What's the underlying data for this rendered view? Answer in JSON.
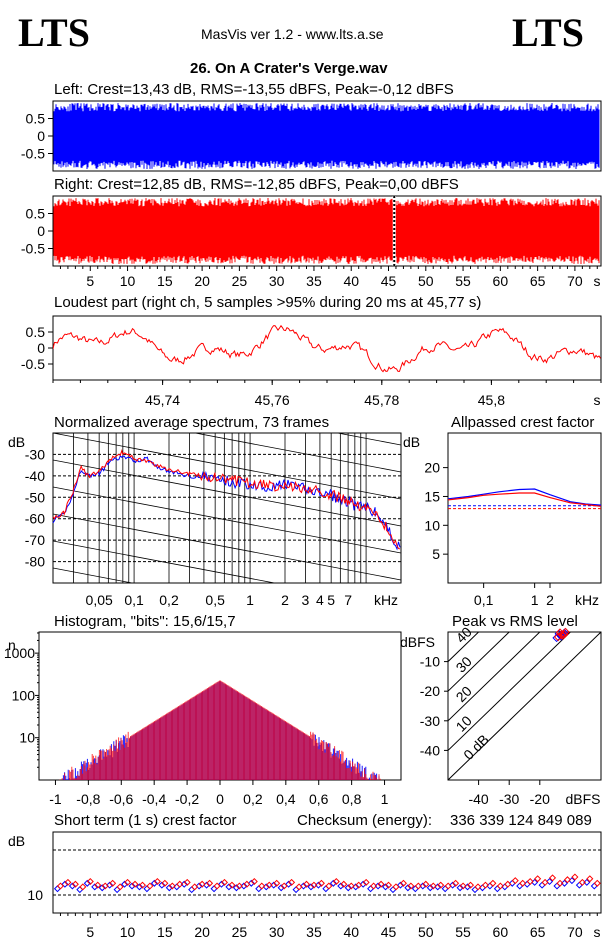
{
  "header": {
    "logo_left": "LTS",
    "logo_right": "LTS",
    "app": "MasVis ver 1.2 - www.lts.a.se",
    "file": "26. On A Crater's Verge.wav"
  },
  "colors": {
    "left": "#0000ff",
    "right": "#ff0000",
    "grid": "#000000"
  },
  "chart_data": [
    {
      "id": "left",
      "type": "area",
      "title": "Left: Crest=13,43 dB, RMS=-13,55 dBFS, Peak=-0,12 dBFS",
      "crest_db": 13.43,
      "rms_dbfs": -13.55,
      "peak_dbfs": -0.12,
      "yticks": [
        "0.5",
        "0",
        "-0.5"
      ],
      "ylim": [
        -1,
        1
      ],
      "xlim": [
        0,
        73.5
      ]
    },
    {
      "id": "right",
      "type": "area",
      "title": "Right: Crest=12,85 dB, RMS=-12,85 dBFS, Peak=0,00 dBFS",
      "crest_db": 12.85,
      "rms_dbfs": -12.85,
      "peak_dbfs": 0.0,
      "yticks": [
        "0.5",
        "0",
        "-0.5"
      ],
      "ylim": [
        -1,
        1
      ],
      "xlim": [
        0,
        73.5
      ],
      "marker_x": 45.77,
      "xticks": [
        "5",
        "10",
        "15",
        "20",
        "25",
        "30",
        "35",
        "40",
        "45",
        "50",
        "55",
        "60",
        "65",
        "70",
        "s"
      ]
    },
    {
      "id": "loudest",
      "type": "line",
      "title": "Loudest part (right ch, 5 samples >95% during 20 ms at 45,77 s)",
      "yticks": [
        "0.5",
        "0",
        "-0.5"
      ],
      "ylim": [
        -1,
        1
      ],
      "xlim": [
        45.72,
        45.82
      ],
      "xticks": [
        "45,74",
        "45,76",
        "45,78",
        "45,8",
        "s"
      ]
    },
    {
      "id": "spectrum",
      "type": "line",
      "title": "Normalized average spectrum, 73 frames",
      "ylabel": "dB",
      "yticks": [
        "-30",
        "-40",
        "-50",
        "-60",
        "-70",
        "-80"
      ],
      "ylim": [
        -90,
        -20
      ],
      "xticks": [
        "0,05",
        "0,1",
        "0,2",
        "0,5",
        "1",
        "2",
        "3",
        "4",
        "5",
        "7",
        "kHz"
      ],
      "x_khz": [
        0.02,
        0.025,
        0.03,
        0.035,
        0.04,
        0.05,
        0.06,
        0.08,
        0.1,
        0.13,
        0.15,
        0.2,
        0.3,
        0.5,
        0.7,
        1,
        1.5,
        2,
        3,
        4,
        5,
        6,
        7,
        8,
        10,
        12,
        15,
        20
      ],
      "series": [
        {
          "name": "Left",
          "values": [
            -61,
            -58,
            -48,
            -37,
            -40,
            -39,
            -34,
            -31,
            -33,
            -32,
            -35,
            -38,
            -40,
            -41,
            -43,
            -44,
            -45,
            -44,
            -46,
            -48,
            -49,
            -51,
            -52,
            -54,
            -55,
            -57,
            -64,
            -75
          ]
        },
        {
          "name": "Right",
          "values": [
            -60,
            -57,
            -47,
            -36,
            -40,
            -38,
            -33,
            -29,
            -32,
            -33,
            -35,
            -37,
            -39,
            -41,
            -42,
            -43,
            -45,
            -44,
            -46,
            -47,
            -49,
            -50,
            -52,
            -53,
            -55,
            -57,
            -64,
            -76
          ]
        }
      ]
    },
    {
      "id": "allpass",
      "type": "line",
      "title": "Allpassed crest factor",
      "ylabel": "dB",
      "yticks": [
        "20",
        "15",
        "10",
        "5"
      ],
      "ylim": [
        0,
        26
      ],
      "xticks": [
        "0,1",
        "1",
        "2",
        "kHz"
      ],
      "x_khz": [
        0.02,
        0.05,
        0.1,
        0.2,
        0.5,
        1,
        2,
        5,
        10,
        20
      ],
      "series": [
        {
          "name": "Left",
          "values": [
            14.6,
            15.0,
            15.4,
            15.8,
            16.2,
            16.3,
            15.3,
            14.1,
            13.7,
            13.5
          ]
        },
        {
          "name": "Right",
          "values": [
            14.4,
            14.8,
            15.2,
            15.4,
            15.6,
            15.6,
            14.8,
            13.9,
            13.6,
            13.3
          ]
        }
      ],
      "reference": [
        {
          "name": "Left",
          "value": 13.4
        },
        {
          "name": "Right",
          "value": 12.9
        }
      ]
    },
    {
      "id": "histogram",
      "type": "bar",
      "title": "Histogram, \"bits\": 15,6/15,7",
      "ylabel": "n",
      "yscale": "log",
      "yticks": [
        "1000",
        "100",
        "10"
      ],
      "xticks": [
        "-1",
        "-0,8",
        "-0,6",
        "-0,4",
        "-0,2",
        "0",
        "0,2",
        "0,4",
        "0,6",
        "0,8",
        "1"
      ],
      "xlim": [
        -1.1,
        1.1
      ],
      "peak_counts": [
        {
          "name": "Left",
          "value": 220
        },
        {
          "name": "Right",
          "value": 230
        }
      ]
    },
    {
      "id": "peak_rms",
      "type": "scatter",
      "title": "Peak vs RMS level",
      "ylabel": "dBFS",
      "yticks": [
        "-10",
        "-20",
        "-30",
        "-40"
      ],
      "xlabel": "dBFS",
      "xticks": [
        "-40",
        "-30",
        "-20"
      ],
      "xlim": [
        -50,
        0
      ],
      "ylim": [
        -50,
        0
      ],
      "diagonal_labels": [
        "40",
        "30",
        "20",
        "10",
        "0 dB"
      ],
      "points": [
        {
          "name": "Left",
          "rms": [
            -13.0,
            -13.8,
            -12.4,
            -14.5,
            -12.0,
            -13.2
          ],
          "peak": [
            -1.5,
            -0.6,
            -0.9,
            -2.0,
            -0.3,
            -1.1
          ]
        },
        {
          "name": "Right",
          "rms": [
            -12.6,
            -13.4,
            -12.0,
            -14.0,
            -11.6,
            -12.9
          ],
          "peak": [
            -1.2,
            -0.2,
            -0.8,
            -1.7,
            0.0,
            -0.9
          ]
        }
      ]
    },
    {
      "id": "short_crest",
      "type": "scatter",
      "title": "Short term (1 s) crest factor",
      "checksum_label": "Checksum (energy):",
      "checksum": "336 339 124 849 089",
      "ylabel": "dB",
      "yticks": [
        "10"
      ],
      "ylim": [
        8,
        17
      ],
      "xlim": [
        0,
        73.5
      ],
      "xticks": [
        "5",
        "10",
        "15",
        "20",
        "25",
        "30",
        "35",
        "40",
        "45",
        "50",
        "55",
        "60",
        "65",
        "70",
        "s"
      ],
      "series": [
        {
          "name": "Left",
          "values": [
            10.7,
            11.2,
            11.0,
            10.6,
            11.3,
            10.9,
            10.8,
            11.1,
            10.6,
            11.2,
            11.0,
            10.9,
            10.7,
            11.3,
            11.1,
            10.8,
            10.9,
            11.2,
            10.6,
            11.0,
            11.1,
            10.7,
            11.2,
            10.9,
            10.8,
            11.0,
            11.3,
            10.7,
            10.9,
            11.1,
            10.8,
            11.2,
            10.6,
            11.0,
            10.9,
            11.1,
            10.7,
            11.3,
            11.0,
            10.8,
            10.9,
            11.2,
            10.7,
            11.0,
            10.9,
            10.6,
            11.1,
            10.8,
            10.7,
            11.0,
            10.8,
            10.9,
            10.7,
            11.1,
            10.8,
            10.9,
            10.6,
            10.8,
            11.0,
            10.7,
            10.9,
            11.3,
            11.0,
            11.2,
            11.4,
            11.1,
            11.5,
            11.0,
            11.3,
            11.6,
            11.1,
            11.4,
            11.0
          ]
        },
        {
          "name": "Right",
          "values": [
            11.0,
            11.4,
            11.2,
            10.9,
            11.5,
            11.1,
            11.0,
            11.3,
            10.9,
            11.4,
            11.2,
            11.1,
            11.0,
            11.5,
            11.3,
            11.0,
            11.2,
            11.4,
            10.9,
            11.2,
            11.3,
            11.0,
            11.4,
            11.1,
            11.0,
            11.2,
            11.5,
            11.0,
            11.1,
            11.3,
            11.0,
            11.4,
            10.9,
            11.2,
            11.1,
            11.3,
            11.0,
            11.5,
            11.2,
            11.0,
            11.1,
            11.4,
            11.0,
            11.2,
            11.1,
            10.9,
            11.3,
            11.0,
            11.0,
            11.2,
            11.0,
            11.1,
            11.0,
            11.3,
            11.0,
            11.1,
            10.9,
            11.1,
            11.3,
            11.0,
            11.2,
            11.6,
            11.3,
            11.5,
            11.8,
            11.4,
            11.9,
            11.3,
            11.7,
            12.0,
            11.4,
            11.8,
            11.3
          ]
        }
      ]
    }
  ]
}
